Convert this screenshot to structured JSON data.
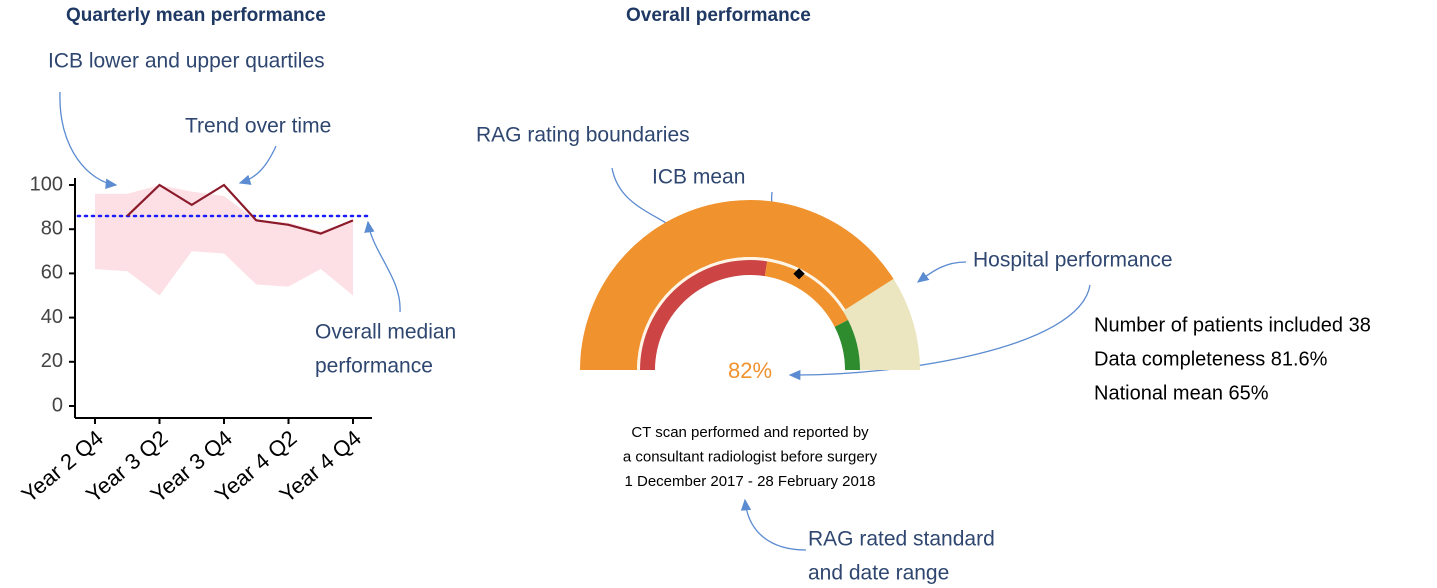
{
  "chart_data": [
    {
      "type": "line",
      "title": "Quarterly mean performance",
      "categories": [
        "Year 2 Q4",
        null,
        "Year 3 Q2",
        null,
        "Year 3 Q4",
        null,
        "Year 4 Q2",
        null,
        "Year 4 Q4"
      ],
      "series": [
        {
          "color": "#8b1a2b",
          "values": [
            null,
            86,
            100,
            91,
            100,
            84,
            82,
            78,
            84
          ]
        }
      ],
      "band": {
        "color": "#fde0e5",
        "upper": [
          96,
          96,
          100,
          97,
          95,
          84,
          83,
          79,
          84
        ],
        "lower": [
          62,
          61,
          50,
          70,
          69,
          55,
          54,
          62,
          50
        ]
      },
      "reference_value": 86,
      "reference_color": "#1a1aff",
      "ylim": [
        0,
        100
      ],
      "yticks": [
        0,
        20,
        40,
        60,
        80,
        100
      ],
      "annotations": [
        [
          "ICB lower and upper quartiles"
        ],
        [
          "Trend over time"
        ],
        [
          "Overall median",
          "performance"
        ]
      ]
    },
    {
      "type": "gauge",
      "title": "Overall performance",
      "value": 82,
      "value_label": "82%",
      "range": [
        0,
        100
      ],
      "color": "#f0922e",
      "track_color": "#ebe6bf",
      "rag_boundaries": [
        55,
        85
      ],
      "rag_colors": [
        "#cc4444",
        "#f0922e",
        "#2e8b2e"
      ],
      "icb_mean": 65,
      "stats": [
        "Number of patients included 38",
        "Data completeness 81.6%",
        "National mean 65%"
      ],
      "caption": [
        "CT scan performed and reported by",
        "a consultant radiologist before surgery",
        "1 December 2017  -  28 February 2018"
      ],
      "annotations": [
        [
          "RAG rating boundaries"
        ],
        [
          "ICB mean"
        ],
        [
          "Hospital performance"
        ],
        [
          "RAG rated standard",
          "and date range"
        ]
      ]
    }
  ]
}
